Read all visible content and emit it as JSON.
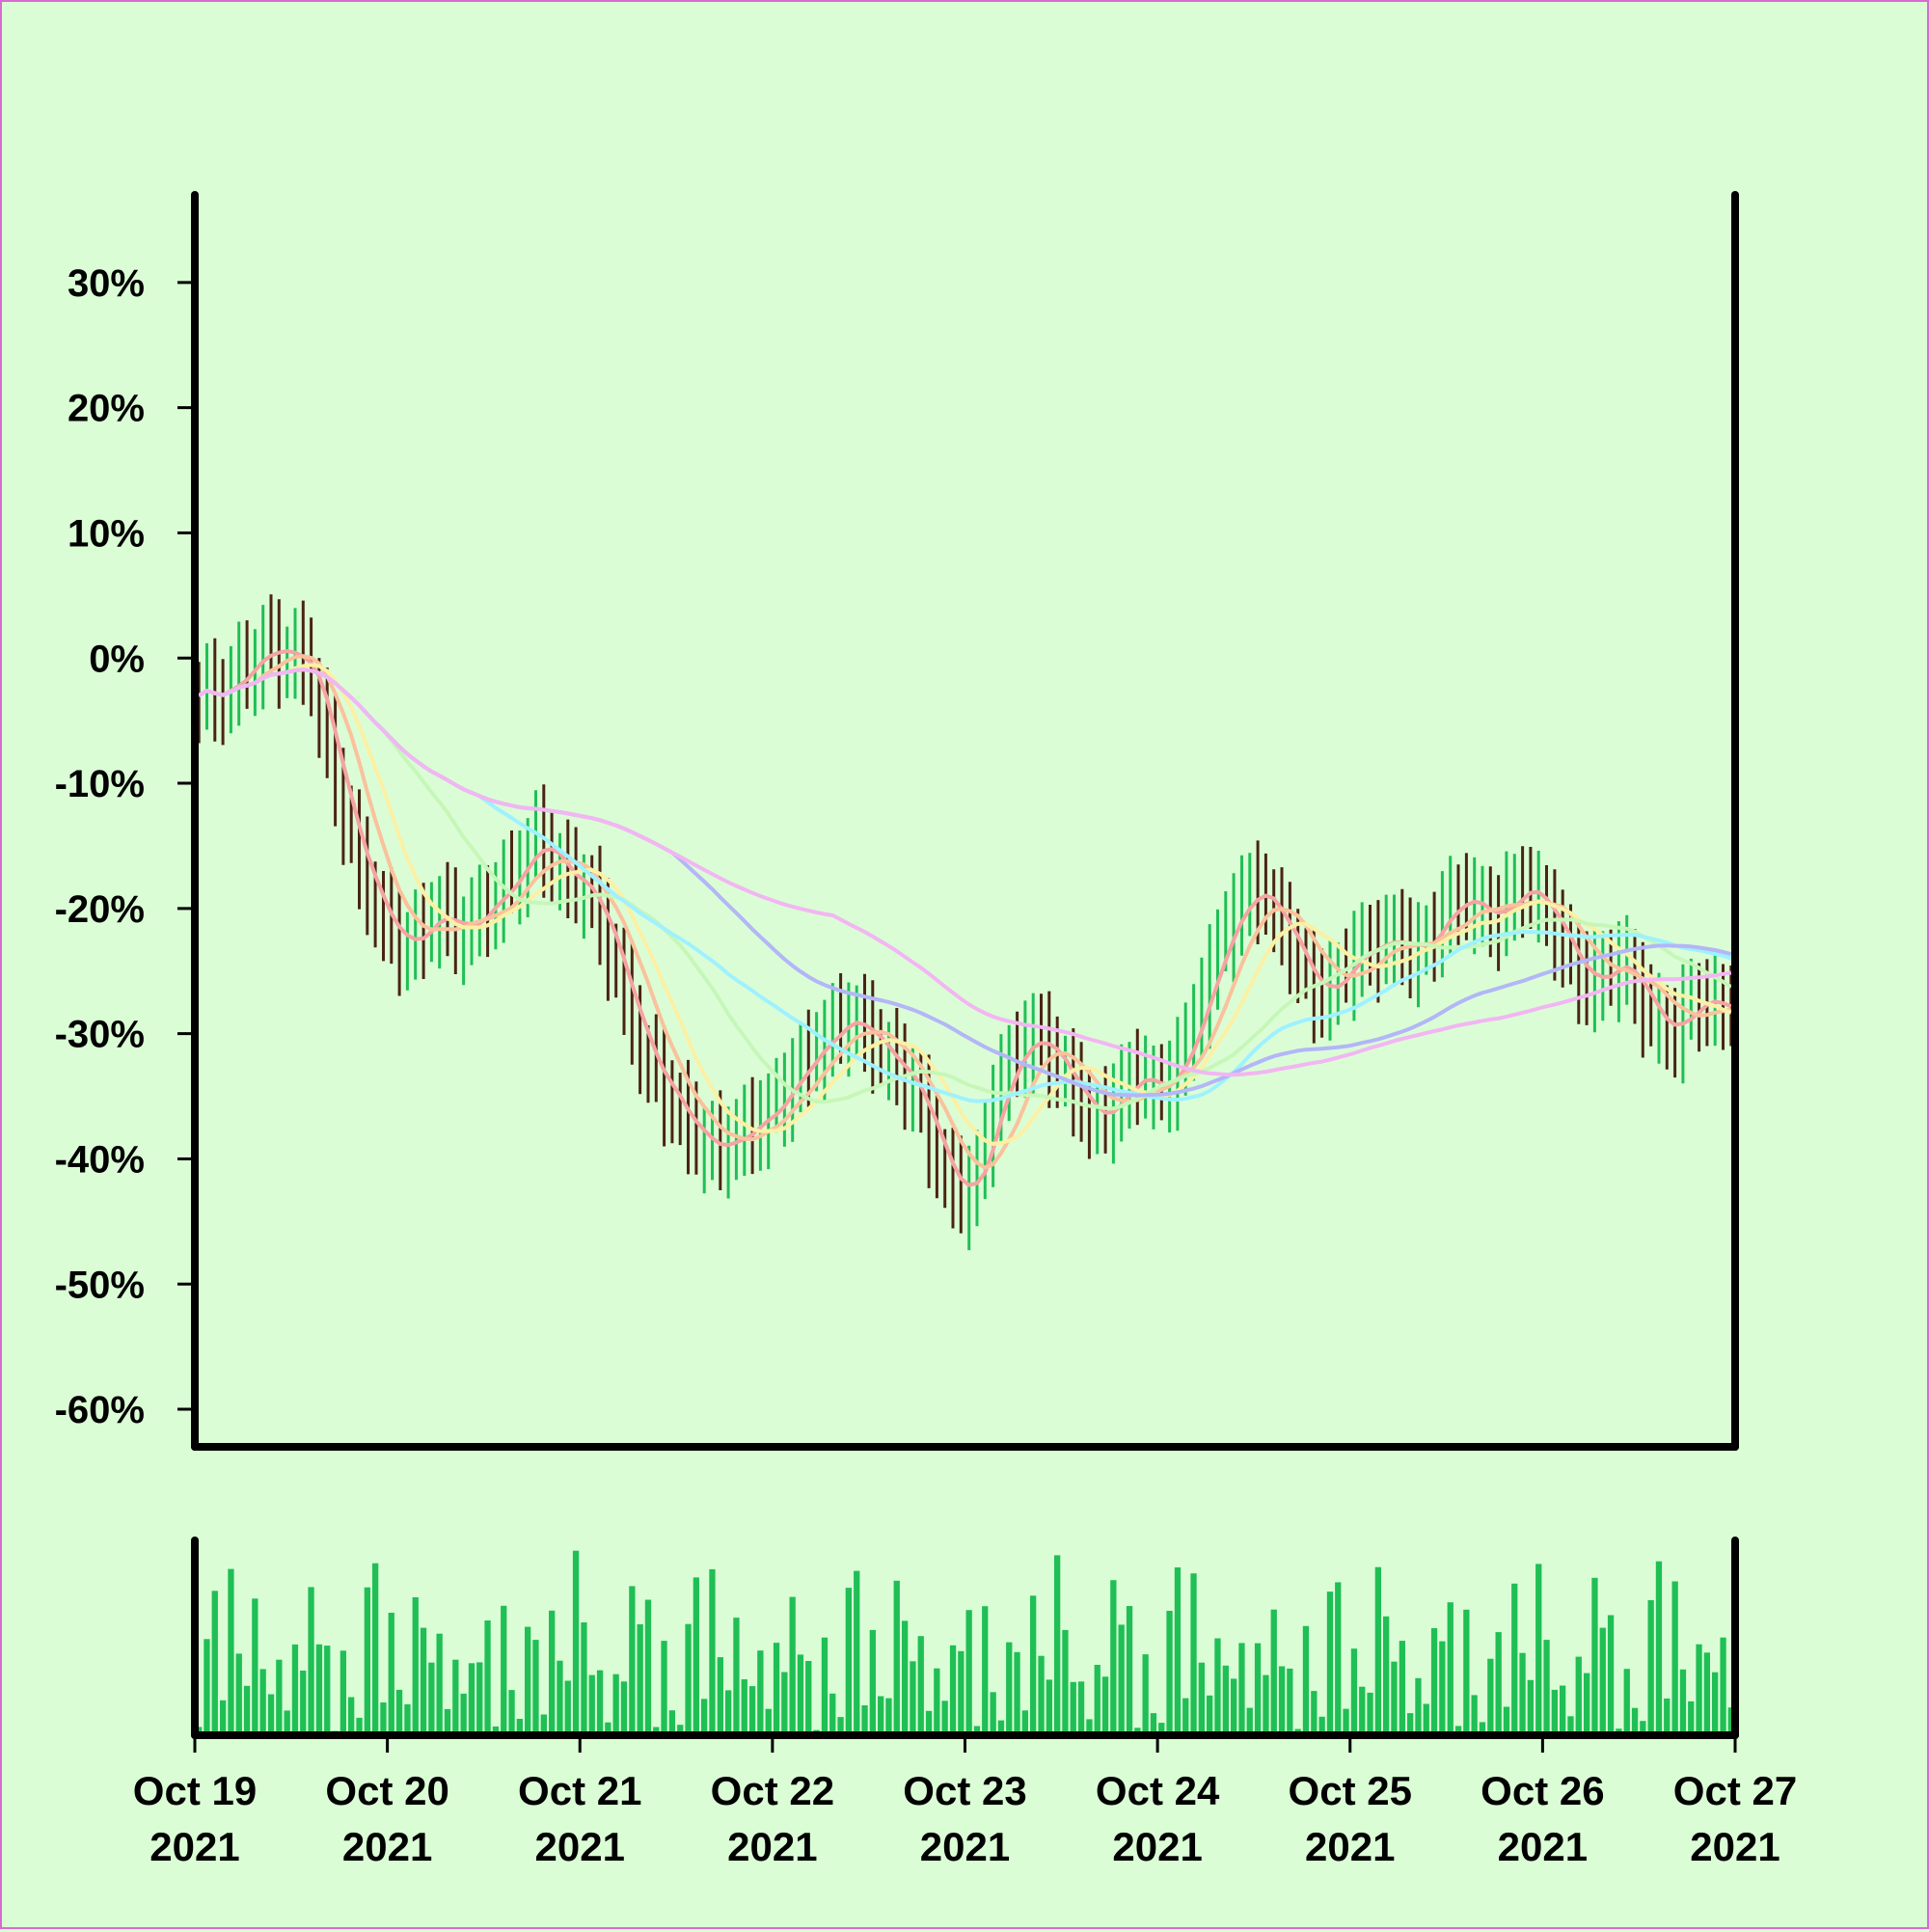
{
  "chart_data": {
    "type": "ohlc",
    "ylim": [
      -63,
      37
    ],
    "y_ticks": [
      "30%",
      "20%",
      "10%",
      "0%",
      "-10%",
      "-20%",
      "-30%",
      "-40%",
      "-50%",
      "-60%"
    ],
    "y_tick_values": [
      30,
      20,
      10,
      0,
      -10,
      -20,
      -30,
      -40,
      -50,
      -60
    ],
    "x_range": [
      0,
      192
    ],
    "x_tick_values": [
      0,
      24,
      48,
      72,
      96,
      120,
      144,
      168,
      192
    ],
    "x_tick_labels": [
      {
        "date": "Oct 19",
        "year": "2021"
      },
      {
        "date": "Oct 20",
        "year": "2021"
      },
      {
        "date": "Oct 21",
        "year": "2021"
      },
      {
        "date": "Oct 22",
        "year": "2021"
      },
      {
        "date": "Oct 23",
        "year": "2021"
      },
      {
        "date": "Oct 24",
        "year": "2021"
      },
      {
        "date": "Oct 25",
        "year": "2021"
      },
      {
        "date": "Oct 26",
        "year": "2021"
      },
      {
        "date": "Oct 27",
        "year": "2021"
      }
    ],
    "close_anchors": [
      [
        0,
        -3
      ],
      [
        3,
        -3
      ],
      [
        6,
        -1
      ],
      [
        9,
        1
      ],
      [
        12,
        0
      ],
      [
        14,
        0
      ],
      [
        16,
        -6
      ],
      [
        18,
        -11
      ],
      [
        20,
        -16
      ],
      [
        22,
        -19
      ],
      [
        24,
        -22
      ],
      [
        27,
        -23
      ],
      [
        30,
        -20
      ],
      [
        33,
        -22
      ],
      [
        36,
        -20
      ],
      [
        39,
        -18
      ],
      [
        41,
        -16
      ],
      [
        43,
        -14
      ],
      [
        45,
        -17
      ],
      [
        48,
        -18
      ],
      [
        50,
        -20
      ],
      [
        52,
        -24
      ],
      [
        54,
        -28
      ],
      [
        56,
        -32
      ],
      [
        58,
        -34
      ],
      [
        60,
        -36
      ],
      [
        62,
        -38
      ],
      [
        64,
        -39
      ],
      [
        66,
        -39
      ],
      [
        68,
        -38
      ],
      [
        70,
        -37
      ],
      [
        72,
        -36
      ],
      [
        74,
        -34
      ],
      [
        76,
        -32
      ],
      [
        78,
        -31
      ],
      [
        80,
        -29
      ],
      [
        82,
        -29
      ],
      [
        84,
        -30
      ],
      [
        86,
        -32
      ],
      [
        88,
        -33
      ],
      [
        90,
        -35
      ],
      [
        92,
        -39
      ],
      [
        94,
        -42
      ],
      [
        96,
        -43
      ],
      [
        98,
        -40
      ],
      [
        100,
        -34
      ],
      [
        102,
        -32
      ],
      [
        104,
        -30
      ],
      [
        106,
        -31
      ],
      [
        108,
        -33
      ],
      [
        110,
        -35
      ],
      [
        112,
        -37
      ],
      [
        114,
        -36
      ],
      [
        116,
        -34
      ],
      [
        118,
        -33
      ],
      [
        120,
        -35
      ],
      [
        122,
        -33
      ],
      [
        124,
        -30
      ],
      [
        126,
        -26
      ],
      [
        128,
        -22
      ],
      [
        130,
        -20
      ],
      [
        132,
        -18
      ],
      [
        134,
        -20
      ],
      [
        136,
        -22
      ],
      [
        138,
        -25
      ],
      [
        140,
        -27
      ],
      [
        142,
        -26
      ],
      [
        144,
        -24
      ],
      [
        146,
        -23
      ],
      [
        148,
        -23
      ],
      [
        150,
        -22
      ],
      [
        152,
        -24
      ],
      [
        154,
        -22
      ],
      [
        156,
        -20
      ],
      [
        158,
        -19
      ],
      [
        160,
        -20
      ],
      [
        162,
        -21
      ],
      [
        164,
        -19
      ],
      [
        166,
        -18
      ],
      [
        168,
        -20
      ],
      [
        170,
        -22
      ],
      [
        172,
        -25
      ],
      [
        174,
        -26
      ],
      [
        176,
        -25
      ],
      [
        178,
        -24
      ],
      [
        180,
        -27
      ],
      [
        182,
        -29
      ],
      [
        184,
        -30
      ],
      [
        186,
        -28
      ],
      [
        188,
        -27
      ],
      [
        190,
        -28
      ],
      [
        192,
        -28
      ]
    ],
    "ma_windows": [
      4,
      8,
      12,
      24,
      36,
      60,
      80
    ],
    "ma_colors": [
      "#f5a3a3",
      "#f9c29c",
      "#fbf0a4",
      "#c6f7b8",
      "#9ff1ff",
      "#b3b6f7",
      "#f2b6f2"
    ],
    "up_color": "#1fbf55",
    "down_color": "#4a2412",
    "volume_color": "#1fbf55",
    "volume_pattern": [
      10,
      20,
      30,
      40,
      50,
      60,
      70,
      80,
      90,
      100,
      55,
      35,
      75,
      25,
      95,
      45,
      65,
      15,
      85,
      5
    ]
  }
}
